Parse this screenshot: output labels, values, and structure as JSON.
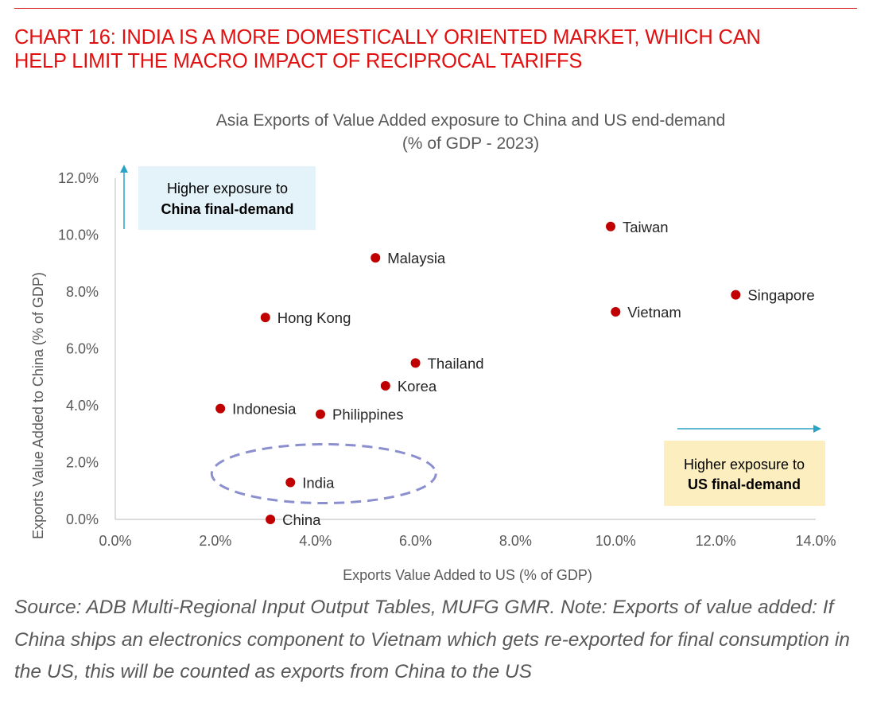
{
  "headline": {
    "lines": [
      "CHART 16: INDIA IS A MORE DOMESTICALLY ORIENTED MARKET, WHICH CAN",
      "HELP LIMIT THE MACRO IMPACT OF RECIPROCAL TARIFFS"
    ],
    "color": "#e01010"
  },
  "chart_data": {
    "type": "scatter",
    "title": "Asia Exports of Value Added exposure to China and US end-demand",
    "subtitle": "(% of GDP - 2023)",
    "xlabel": "Exports Value Added to US (% of GDP)",
    "ylabel": "Exports Value Added to China (% of GDP)",
    "xlim": [
      0,
      14
    ],
    "ylim": [
      0,
      12
    ],
    "xticks": [
      0,
      2,
      4,
      6,
      8,
      10,
      12,
      14
    ],
    "yticks": [
      0,
      2,
      4,
      6,
      8,
      10,
      12
    ],
    "xtick_labels": [
      "0.0%",
      "2.0%",
      "4.0%",
      "6.0%",
      "8.0%",
      "10.0%",
      "12.0%",
      "14.0%"
    ],
    "ytick_labels": [
      "0.0%",
      "2.0%",
      "4.0%",
      "6.0%",
      "8.0%",
      "10.0%",
      "12.0%"
    ],
    "grid": false,
    "marker_color": "#c00000",
    "points": [
      {
        "label": "Taiwan",
        "x": 9.9,
        "y": 10.3
      },
      {
        "label": "Malaysia",
        "x": 5.2,
        "y": 9.2
      },
      {
        "label": "Singapore",
        "x": 12.4,
        "y": 7.9
      },
      {
        "label": "Vietnam",
        "x": 10.0,
        "y": 7.3
      },
      {
        "label": "Hong Kong",
        "x": 3.0,
        "y": 7.1
      },
      {
        "label": "Thailand",
        "x": 6.0,
        "y": 5.5
      },
      {
        "label": "Korea",
        "x": 5.4,
        "y": 4.7
      },
      {
        "label": "Indonesia",
        "x": 2.1,
        "y": 3.9
      },
      {
        "label": "Philippines",
        "x": 4.1,
        "y": 3.7
      },
      {
        "label": "India",
        "x": 3.5,
        "y": 1.3
      },
      {
        "label": "China",
        "x": 3.1,
        "y": 0.0
      }
    ],
    "highlight": {
      "target": "India",
      "style": "dashed-ellipse",
      "color": "#8b8fcf"
    },
    "annotations": [
      {
        "id": "china",
        "line1": "Higher exposure to",
        "line2": "China final-demand",
        "fill": "#e4f3f9",
        "arrow": "up",
        "placement": "top-left"
      },
      {
        "id": "us",
        "line1": "Higher exposure to",
        "line2": "US final-demand",
        "fill": "#fdeebf",
        "arrow": "right",
        "placement": "bottom-right"
      }
    ],
    "arrow_color": "#2aa3c4"
  },
  "footnote": "Source: ADB Multi-Regional Input Output Tables, MUFG GMR. Note: Exports of value added: If China ships an electronics component to Vietnam which gets re-exported for final consumption in the US, this will be counted as exports from China to the US"
}
